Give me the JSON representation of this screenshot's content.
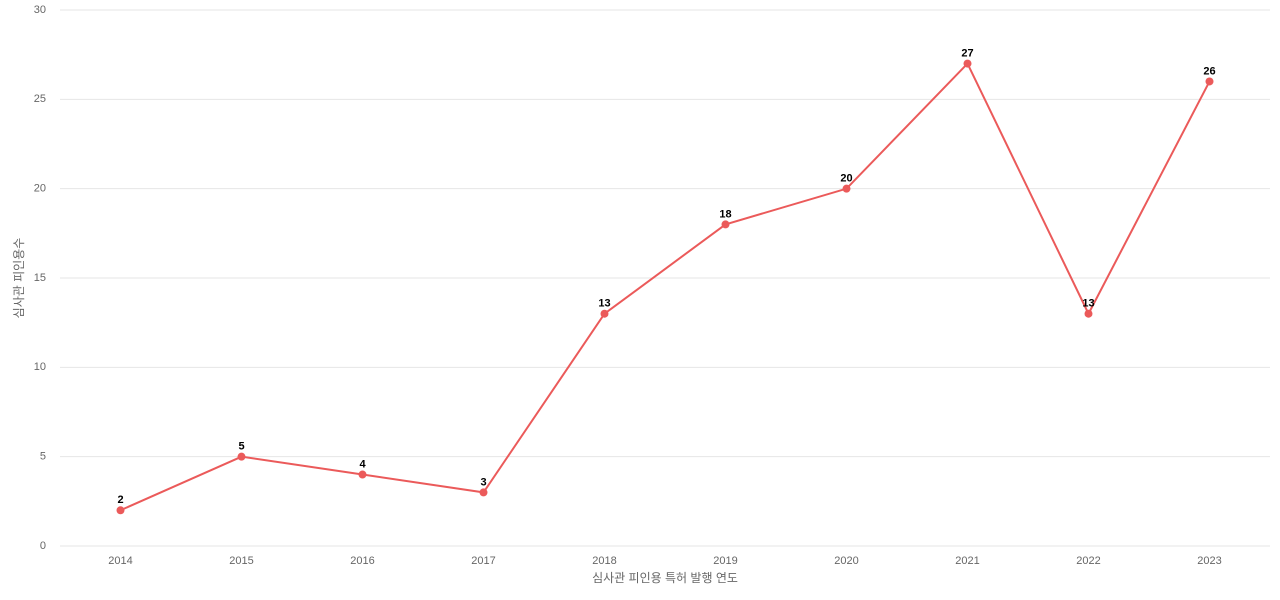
{
  "chart_data": {
    "type": "line",
    "x_label": "심사관 피인용 특허 발행 연도",
    "y_label": "심사관 피인용수",
    "categories": [
      "2014",
      "2015",
      "2016",
      "2017",
      "2018",
      "2019",
      "2020",
      "2021",
      "2022",
      "2023"
    ],
    "values": [
      2,
      5,
      4,
      3,
      13,
      18,
      20,
      27,
      13,
      26
    ],
    "color": "#eb5a5a",
    "ylim": [
      0,
      30
    ],
    "yticks": [
      0,
      5,
      10,
      15,
      20,
      25,
      30
    ],
    "grid": true
  }
}
